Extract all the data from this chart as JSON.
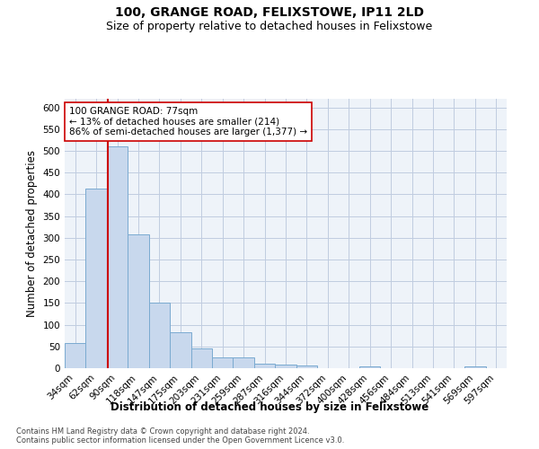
{
  "title": "100, GRANGE ROAD, FELIXSTOWE, IP11 2LD",
  "subtitle": "Size of property relative to detached houses in Felixstowe",
  "xlabel": "Distribution of detached houses by size in Felixstowe",
  "ylabel": "Number of detached properties",
  "bins": [
    "34sqm",
    "62sqm",
    "90sqm",
    "118sqm",
    "147sqm",
    "175sqm",
    "203sqm",
    "231sqm",
    "259sqm",
    "287sqm",
    "316sqm",
    "344sqm",
    "372sqm",
    "400sqm",
    "428sqm",
    "456sqm",
    "484sqm",
    "513sqm",
    "541sqm",
    "569sqm",
    "597sqm"
  ],
  "values": [
    57,
    413,
    510,
    307,
    150,
    83,
    46,
    24,
    24,
    10,
    8,
    6,
    0,
    0,
    5,
    0,
    0,
    0,
    0,
    5,
    0
  ],
  "bar_color": "#c8d8ed",
  "bar_edge_color": "#7aaad0",
  "vline_color": "#cc0000",
  "annotation_text": "100 GRANGE ROAD: 77sqm\n← 13% of detached houses are smaller (214)\n86% of semi-detached houses are larger (1,377) →",
  "annotation_box_color": "#ffffff",
  "annotation_box_edgecolor": "#cc0000",
  "ylim": [
    0,
    620
  ],
  "yticks": [
    0,
    50,
    100,
    150,
    200,
    250,
    300,
    350,
    400,
    450,
    500,
    550,
    600
  ],
  "background_color": "#eef3f9",
  "footnote": "Contains HM Land Registry data © Crown copyright and database right 2024.\nContains public sector information licensed under the Open Government Licence v3.0.",
  "title_fontsize": 10,
  "subtitle_fontsize": 9,
  "xlabel_fontsize": 8.5,
  "ylabel_fontsize": 8.5,
  "tick_fontsize": 7.5,
  "footnote_fontsize": 6.0
}
